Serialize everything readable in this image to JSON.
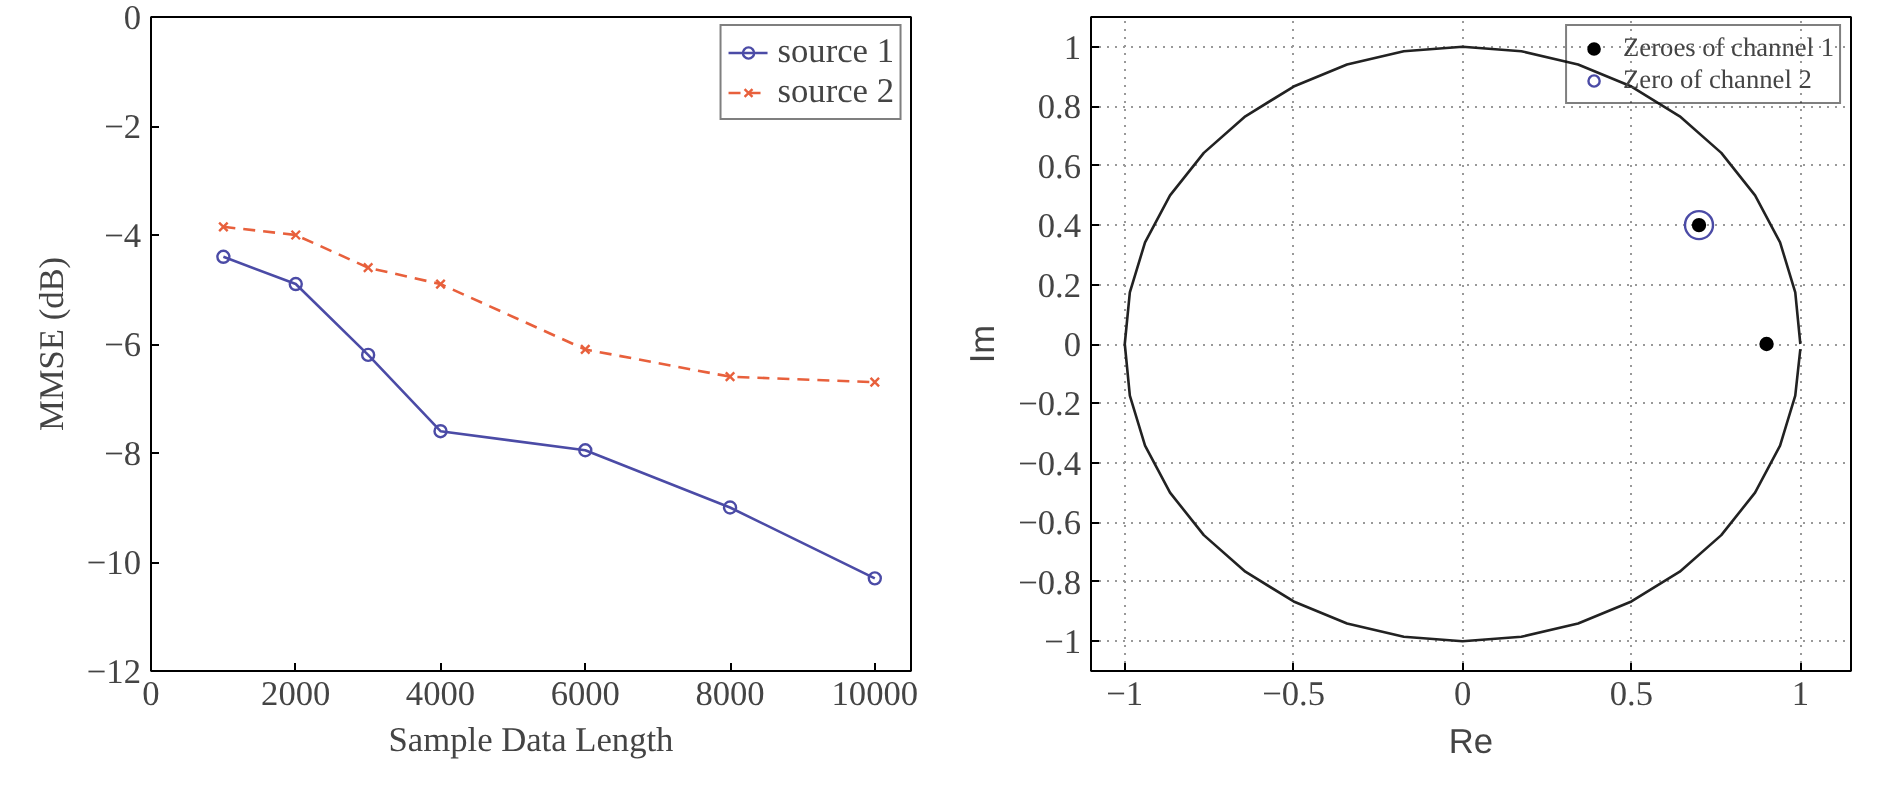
{
  "chart_data": [
    {
      "type": "line",
      "xlabel": "Sample Data Length",
      "ylabel": "MMSE (dB)",
      "xlim": [
        0,
        10500
      ],
      "ylim": [
        -12,
        0
      ],
      "xticks": [
        0,
        2000,
        4000,
        6000,
        8000,
        10000
      ],
      "yticks": [
        -12,
        -10,
        -8,
        -6,
        -4,
        -2,
        0
      ],
      "grid": false,
      "legend": "top right",
      "series": [
        {
          "name": "source 1",
          "color": "#4b4ba6",
          "marker": "circle",
          "line_style": "solid",
          "x": [
            1000,
            2000,
            3000,
            4000,
            6000,
            8000,
            10000
          ],
          "values": [
            -4.4,
            -4.9,
            -6.2,
            -7.6,
            -7.95,
            -9.0,
            -10.3
          ]
        },
        {
          "name": "source 2",
          "color": "#e8603c",
          "marker": "cross",
          "line_style": "dashed",
          "x": [
            1000,
            2000,
            3000,
            4000,
            6000,
            8000,
            10000
          ],
          "values": [
            -3.85,
            -4.0,
            -4.6,
            -4.9,
            -6.1,
            -6.6,
            -6.7
          ]
        }
      ]
    },
    {
      "type": "scatter",
      "xlabel": "Re",
      "ylabel": "Im",
      "xlim": [
        -1.1,
        1.15
      ],
      "ylim": [
        -1.1,
        1.1
      ],
      "xticks": [
        -1,
        -0.5,
        0,
        0.5,
        1
      ],
      "yticks": [
        -1,
        -0.8,
        -0.6,
        -0.4,
        -0.2,
        0,
        0.2,
        0.4,
        0.6,
        0.8,
        1
      ],
      "grid": true,
      "legend": "top right",
      "series": [
        {
          "type": "line",
          "color": "#222222",
          "marker": "none",
          "line_style": "solid",
          "x": [
            1,
            0.985,
            0.94,
            0.866,
            0.766,
            0.643,
            0.5,
            0.342,
            0.174,
            0,
            -0.174,
            -0.342,
            -0.5,
            -0.643,
            -0.766,
            -0.866,
            -0.94,
            -0.985,
            -1,
            -0.985,
            -0.94,
            -0.866,
            -0.766,
            -0.643,
            -0.5,
            -0.342,
            -0.174,
            0,
            0.174,
            0.342,
            0.5,
            0.643,
            0.766,
            0.866,
            0.94,
            0.985,
            1.0
          ],
          "values": [
            0,
            0.174,
            0.342,
            0.5,
            0.643,
            0.766,
            0.866,
            0.94,
            0.985,
            1,
            0.985,
            0.94,
            0.866,
            0.766,
            0.643,
            0.5,
            0.342,
            0.174,
            0,
            -0.174,
            -0.342,
            -0.5,
            -0.643,
            -0.766,
            -0.866,
            -0.94,
            -0.985,
            -1,
            -0.985,
            -0.94,
            -0.866,
            -0.766,
            -0.643,
            -0.5,
            -0.342,
            -0.174,
            -0.017
          ]
        },
        {
          "name": "Zeroes of channel 1",
          "color": "#000000",
          "marker": "circle",
          "x": [
            0.9,
            0.7
          ],
          "values": [
            0,
            0.4
          ]
        },
        {
          "name": "Zero of channel 2",
          "color": "#4b4ba6",
          "marker": "circle",
          "x": [
            0.7
          ],
          "values": [
            0.4
          ]
        }
      ]
    }
  ]
}
